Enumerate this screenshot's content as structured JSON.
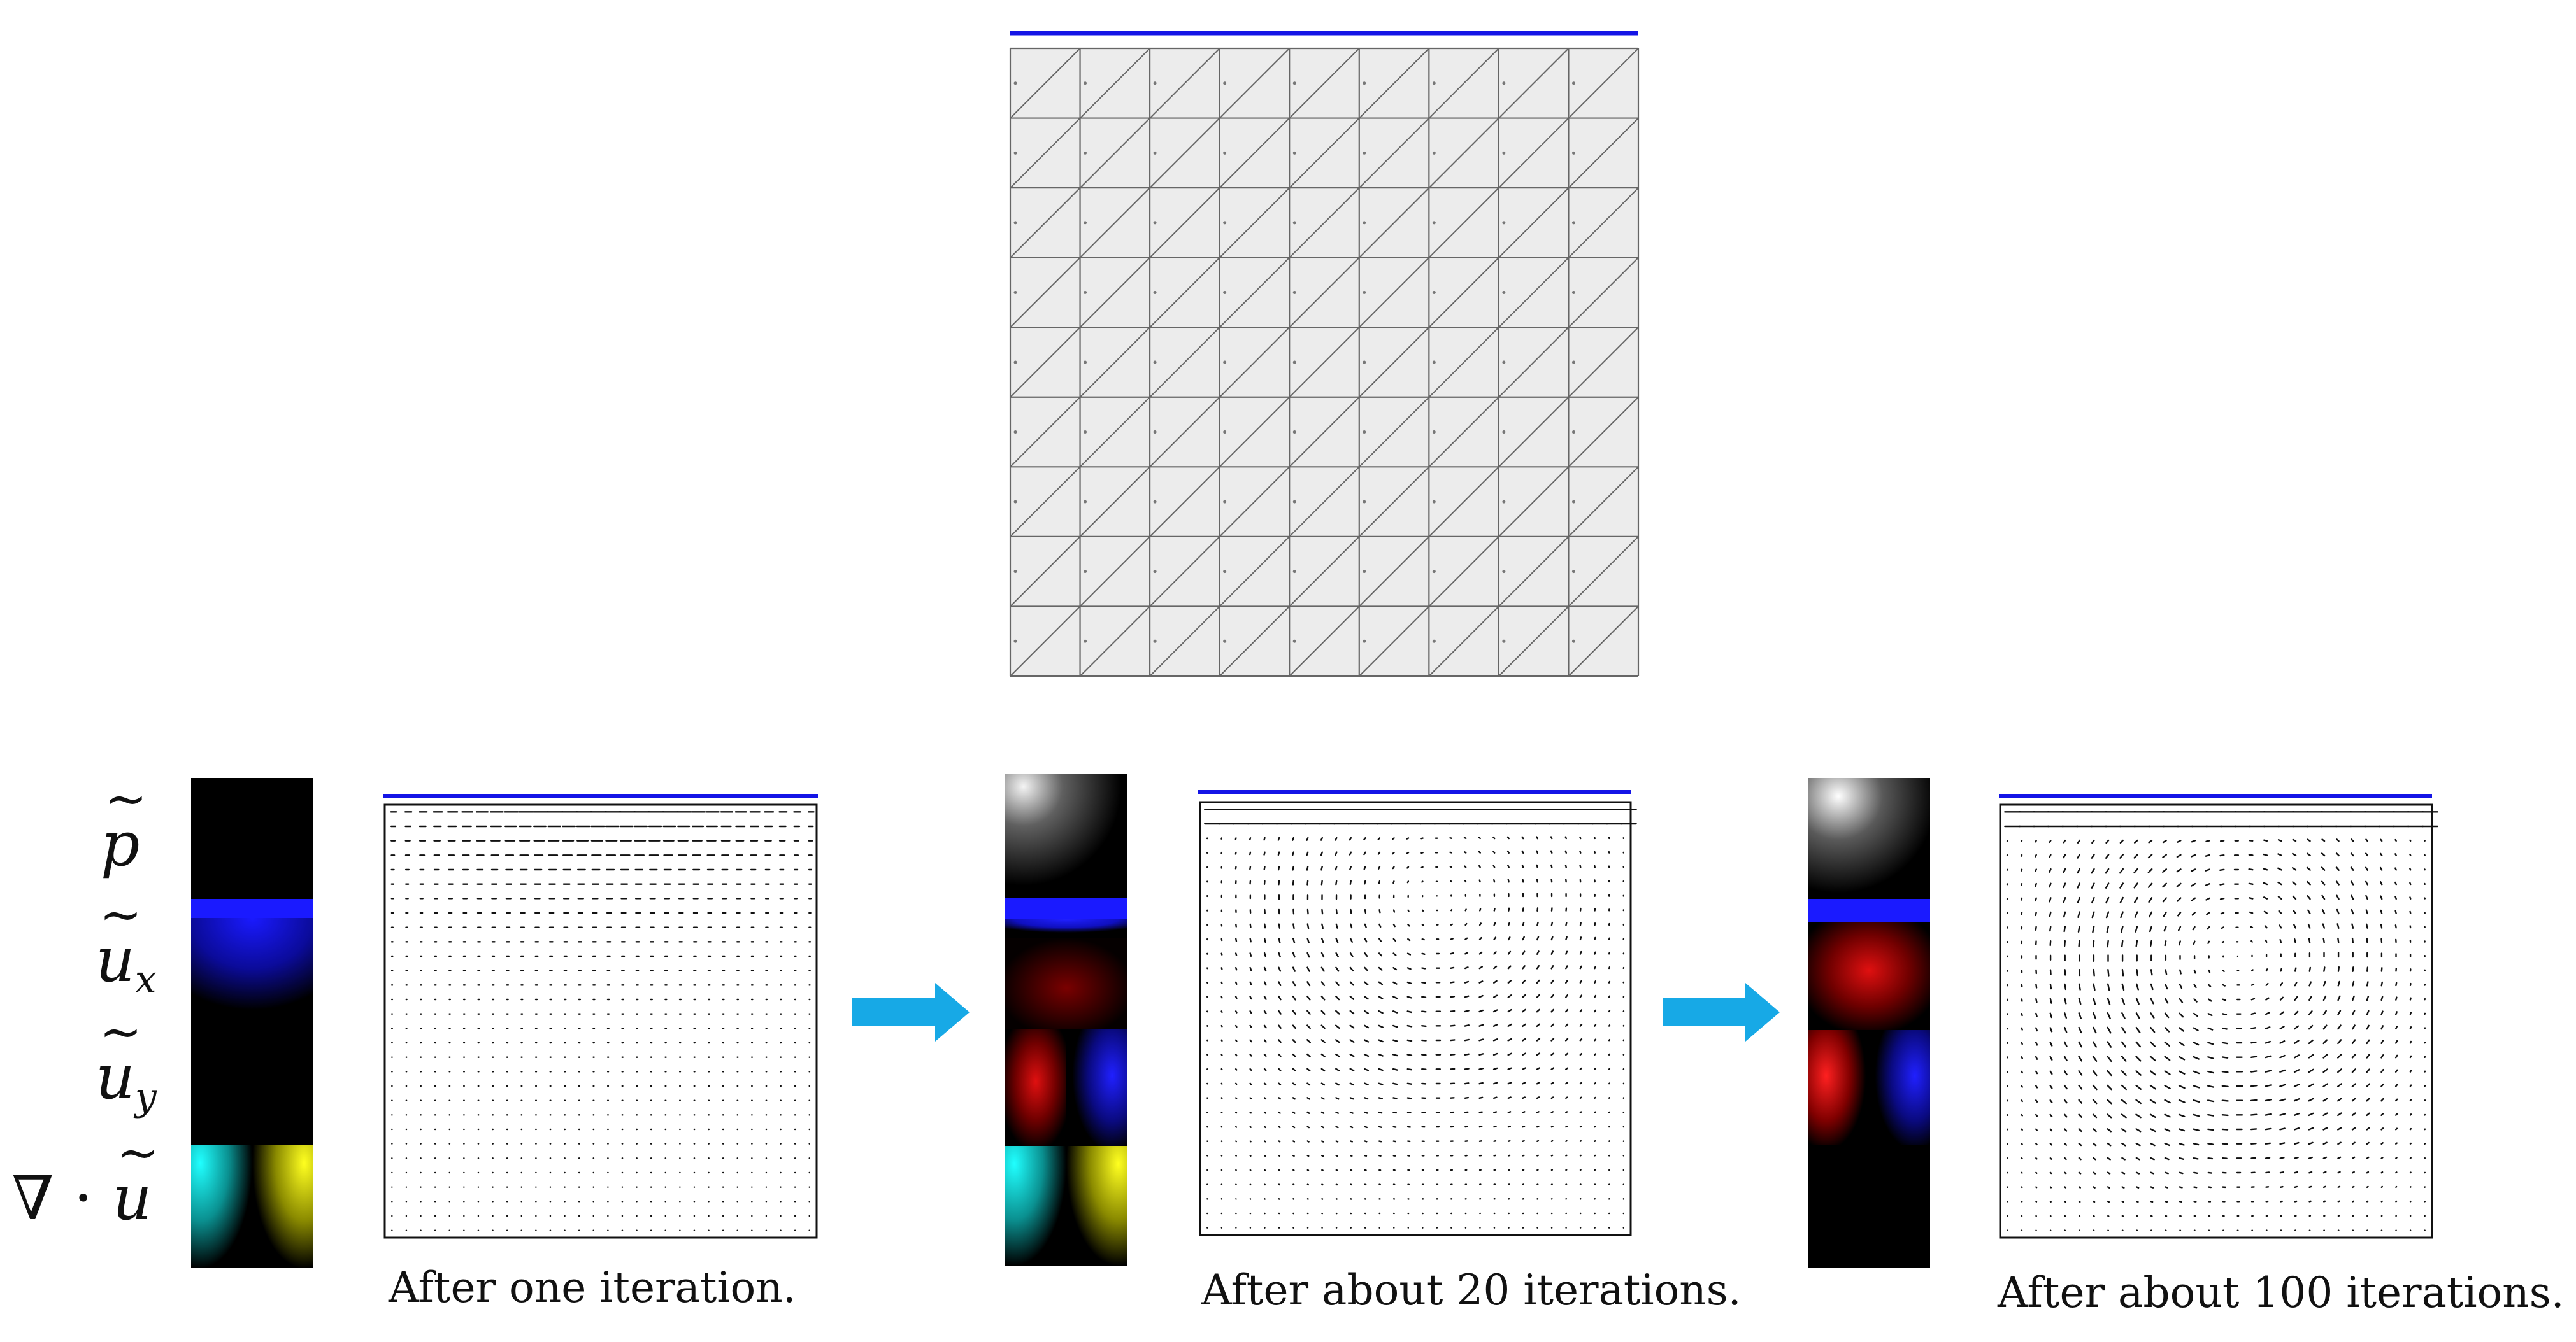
{
  "figure": {
    "mesh": {
      "grid_cells": 9,
      "lid_color": "#1414e6",
      "fill_color": "#ececec"
    },
    "field_labels": [
      {
        "name": "p",
        "subscript": "",
        "prefix": ""
      },
      {
        "name": "u",
        "subscript": "x",
        "prefix": ""
      },
      {
        "name": "u",
        "subscript": "y",
        "prefix": ""
      },
      {
        "name": "u",
        "subscript": "",
        "prefix": "∇ ·"
      }
    ],
    "tilde_glyph": "~",
    "stages": [
      {
        "caption": "After one iteration.",
        "iterations": 1
      },
      {
        "caption": "After about 20 iterations.",
        "iterations": 20
      },
      {
        "caption": "After about 100 iterations.",
        "iterations": 100
      }
    ],
    "colors": {
      "lid": "#1414e6",
      "arrow": "#17a9e6",
      "ux_field": "#1a1aff",
      "uy_negative": "#ff1a1a",
      "uy_positive": "#1a1aff",
      "div_negative": "#1ff0f0",
      "div_positive": "#f0f01a"
    }
  }
}
